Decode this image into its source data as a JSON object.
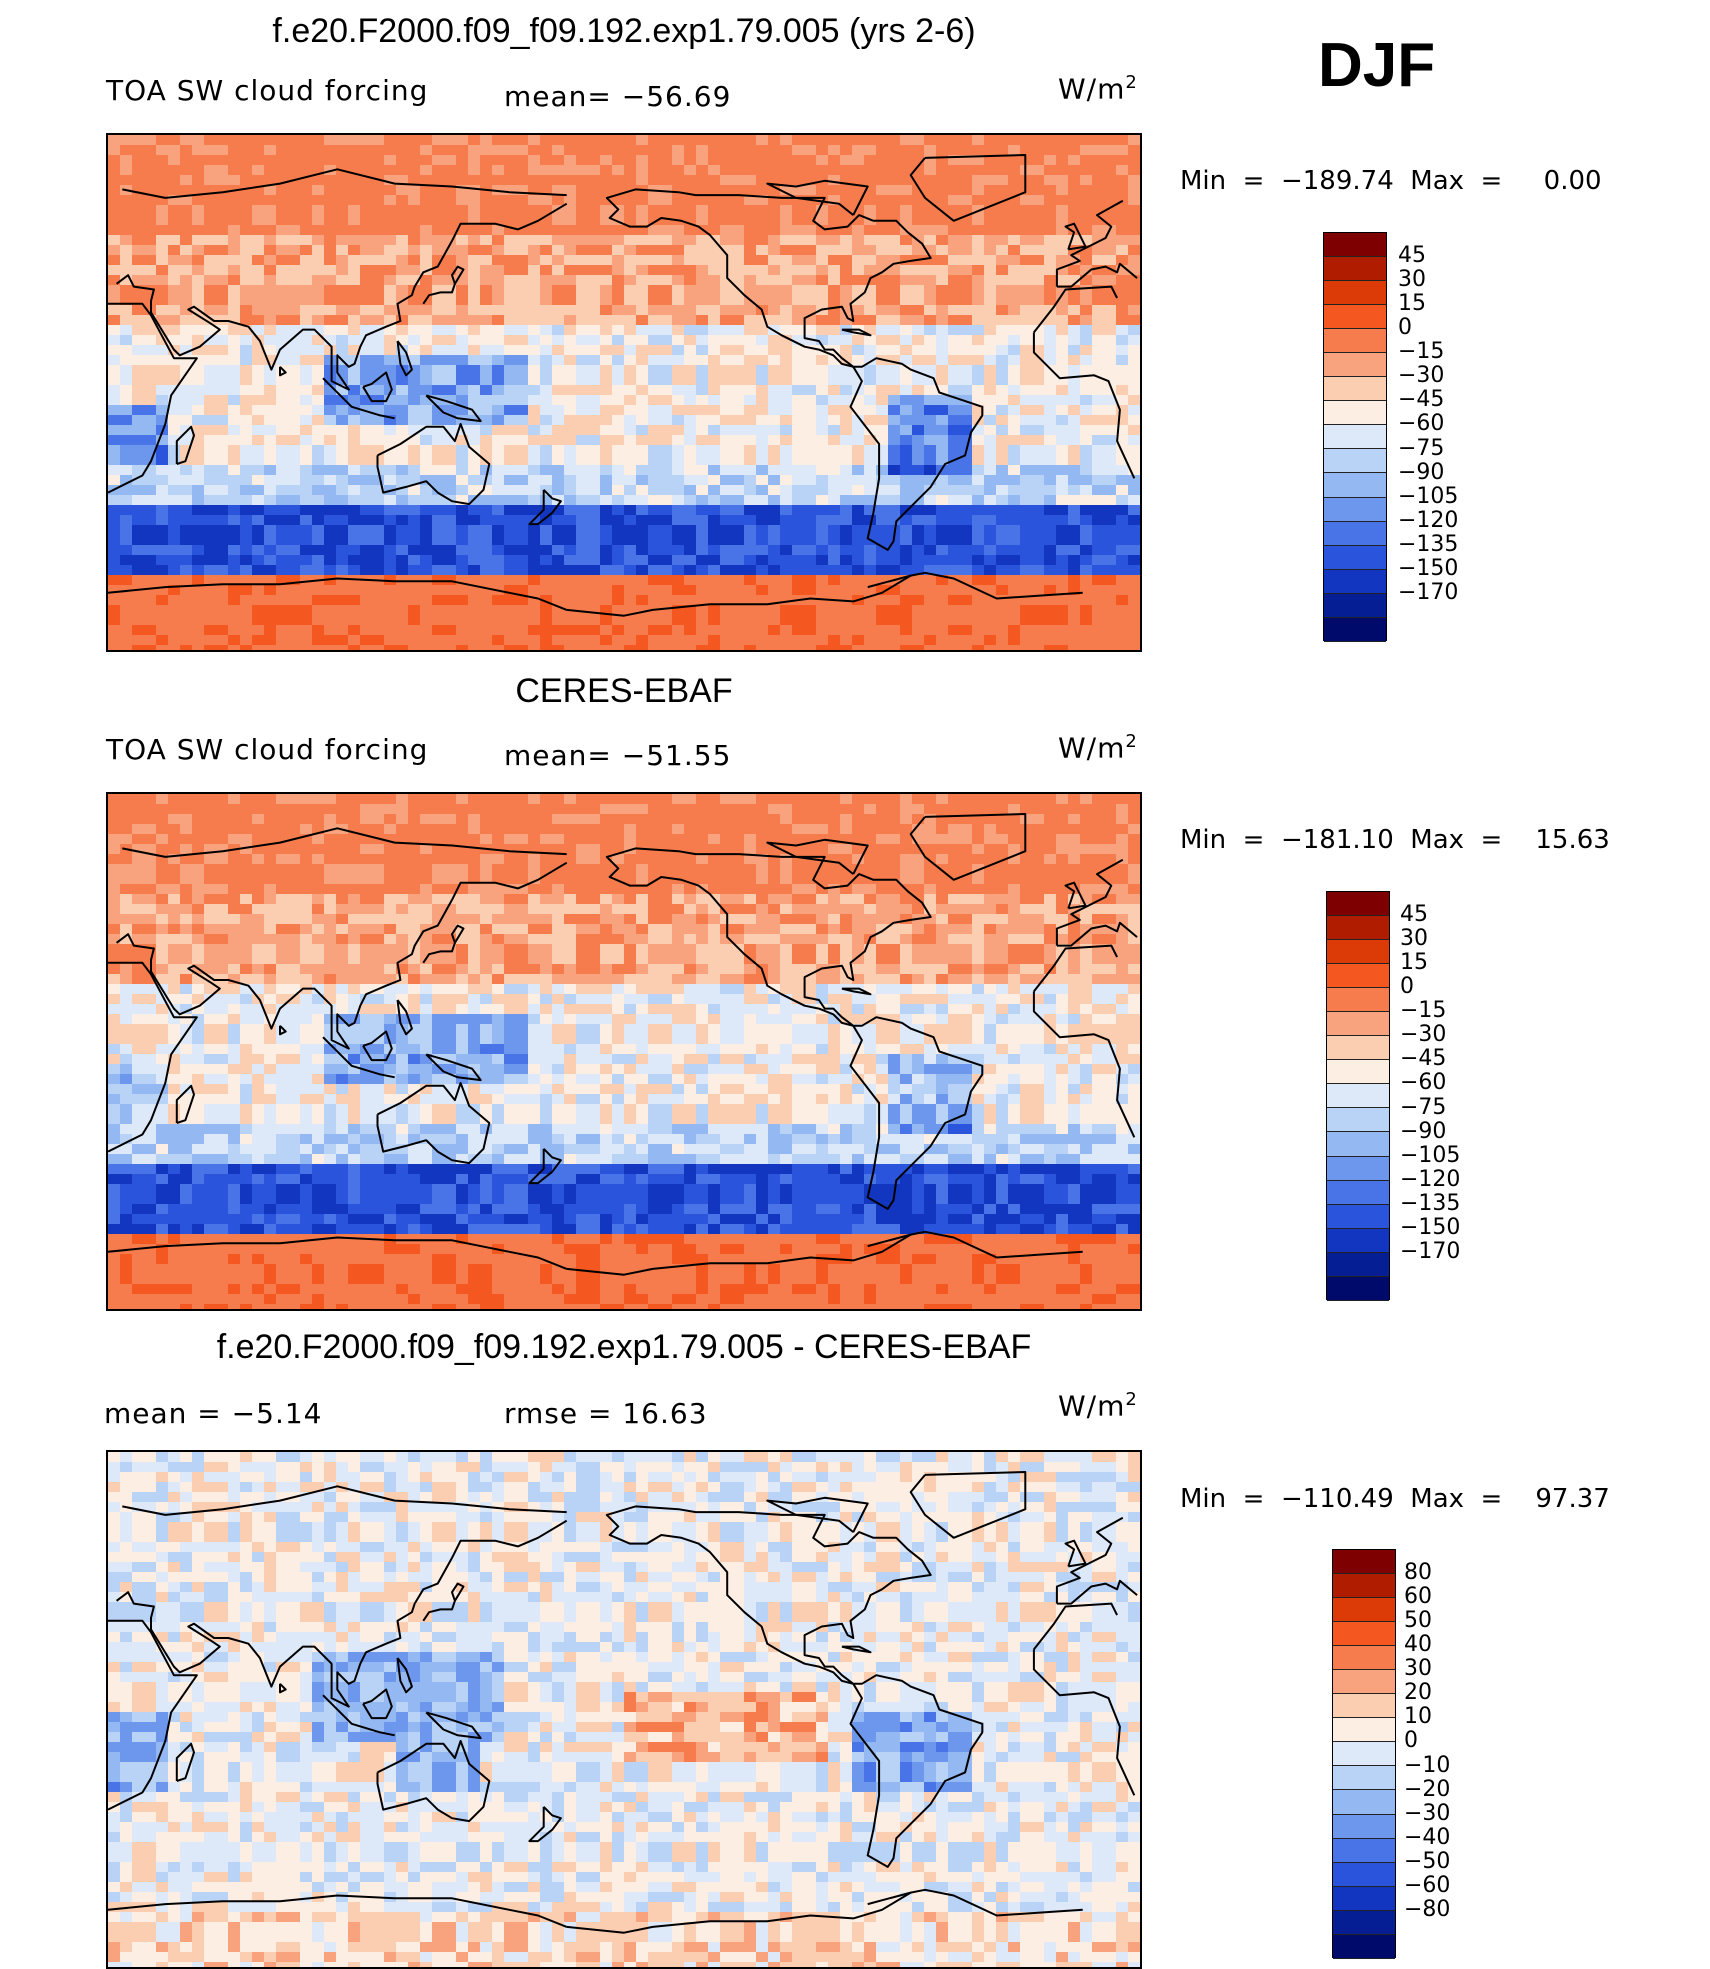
{
  "season": "DJF",
  "panels": [
    {
      "title": "f.e20.F2000.f09_f09.192.exp1.79.005 (yrs 2-6)",
      "left": "TOA SW cloud forcing",
      "mid": "mean=  −56.69",
      "unit_base": "W/m",
      "unit_sup": "2",
      "minmax": "Min  =  −189.74  Max  =     0.00",
      "type": "model",
      "colorbar": {
        "colors": [
          "#7f0000",
          "#b01c00",
          "#dc3a07",
          "#f4571f",
          "#f67c4d",
          "#f8a27e",
          "#fbcdb1",
          "#fdeee4",
          "#dde9f8",
          "#b9d3f6",
          "#94b8f1",
          "#6d97ec",
          "#4974e8",
          "#2b54dc",
          "#1336c1",
          "#061e93",
          "#000a6a"
        ],
        "labels": [
          "45",
          "30",
          "15",
          "0",
          "−15",
          "−30",
          "−45",
          "−60",
          "−75",
          "−90",
          "−105",
          "−120",
          "−135",
          "−150",
          "−170"
        ]
      }
    },
    {
      "title": "CERES-EBAF",
      "left": "TOA SW cloud forcing",
      "mid": "mean=  −51.55",
      "unit_base": "W/m",
      "unit_sup": "2",
      "minmax": "Min  =  −181.10  Max  =    15.63",
      "type": "obs",
      "colorbar": {
        "colors": [
          "#7f0000",
          "#b01c00",
          "#dc3a07",
          "#f4571f",
          "#f67c4d",
          "#f8a27e",
          "#fbcdb1",
          "#fdeee4",
          "#dde9f8",
          "#b9d3f6",
          "#94b8f1",
          "#6d97ec",
          "#4974e8",
          "#2b54dc",
          "#1336c1",
          "#061e93",
          "#000a6a"
        ],
        "labels": [
          "45",
          "30",
          "15",
          "0",
          "−15",
          "−30",
          "−45",
          "−60",
          "−75",
          "−90",
          "−105",
          "−120",
          "−135",
          "−150",
          "−170"
        ]
      }
    },
    {
      "title": "f.e20.F2000.f09_f09.192.exp1.79.005 - CERES-EBAF",
      "left": "mean  =    −5.14",
      "mid": "rmse  =    16.63",
      "unit_base": "W/m",
      "unit_sup": "2",
      "minmax": "Min  =  −110.49  Max  =    97.37",
      "type": "diff",
      "colorbar": {
        "colors": [
          "#7f0000",
          "#b01c00",
          "#dc3a07",
          "#f4571f",
          "#f67c4d",
          "#f8a27e",
          "#fbcdb1",
          "#fdeee4",
          "#dde9f8",
          "#b9d3f6",
          "#94b8f1",
          "#6d97ec",
          "#4974e8",
          "#2b54dc",
          "#1336c1",
          "#061e93",
          "#000a6a"
        ],
        "labels": [
          "80",
          "60",
          "50",
          "40",
          "30",
          "20",
          "10",
          "0",
          "−10",
          "−20",
          "−30",
          "−40",
          "−50",
          "−60",
          "−80"
        ]
      }
    }
  ]
}
